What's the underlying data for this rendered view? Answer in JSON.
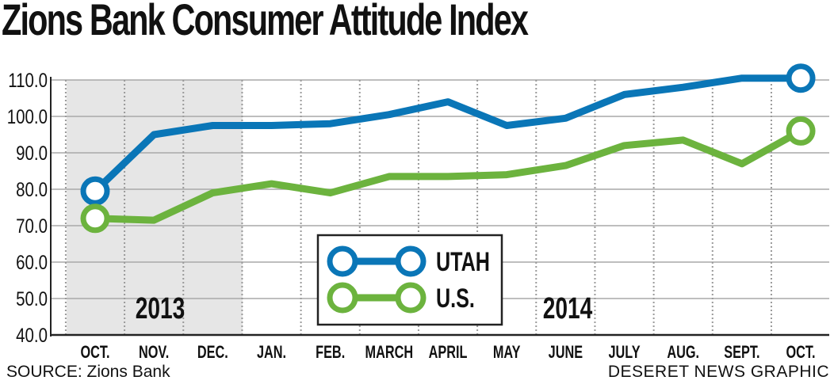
{
  "chart_data": {
    "type": "line",
    "title": "Zions Bank Consumer Attitude Index",
    "categories": [
      "OCT.",
      "NOV.",
      "DEC.",
      "JAN.",
      "FEB.",
      "MARCH",
      "APRIL",
      "MAY",
      "JUNE",
      "JULY",
      "AUG.",
      "SEPT.",
      "OCT."
    ],
    "series": [
      {
        "name": "UTAH",
        "color": "#0a76b7",
        "values": [
          79.5,
          95,
          97.5,
          97.5,
          98,
          100.5,
          104,
          97.5,
          99.5,
          106,
          108,
          110.5,
          110.5
        ]
      },
      {
        "name": "U.S.",
        "color": "#6cb33e",
        "values": [
          72,
          71.5,
          79,
          81.5,
          79,
          83.5,
          83.5,
          84,
          86.5,
          92,
          93.5,
          87,
          96
        ]
      }
    ],
    "yticks": [
      "40.0",
      "50.0",
      "60.0",
      "70.0",
      "80.0",
      "90.0",
      "100.0",
      "110.0"
    ],
    "ylim": [
      40,
      112
    ],
    "year_labels": [
      "2013",
      "2014"
    ],
    "legend": {
      "position": "center-bottom",
      "entries": [
        "UTAH",
        "U.S."
      ]
    },
    "grid": true,
    "shaded_period": "2013"
  },
  "source": "SOURCE: Zions Bank",
  "credit": "DESERET NEWS GRAPHIC"
}
